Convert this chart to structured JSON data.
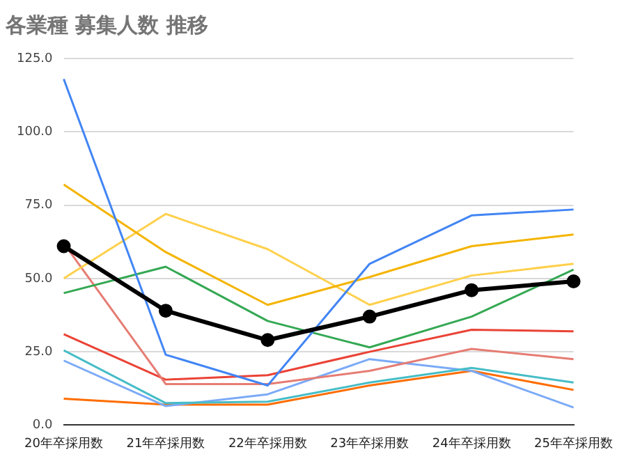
{
  "chart_data": {
    "type": "line",
    "title": "各業種 募集人数 推移",
    "categories": [
      "20年卒採用数",
      "21年卒採用数",
      "22年卒採用数",
      "23年卒採用数",
      "24年卒採用数",
      "25年卒採用数"
    ],
    "series": [
      {
        "color": "#4285f4",
        "values": [
          118,
          24,
          13.5,
          55,
          71.5,
          73.5
        ]
      },
      {
        "color": "#f4b400",
        "values": [
          82,
          59,
          41,
          50.5,
          61,
          65
        ]
      },
      {
        "color": "#ffd04b",
        "values": [
          50,
          72,
          60,
          41,
          51,
          55
        ]
      },
      {
        "color": "#34a853",
        "values": [
          45,
          54,
          35.5,
          26.5,
          37,
          53
        ]
      },
      {
        "color": "#e67c73",
        "values": [
          62,
          14,
          14,
          18.5,
          26,
          22.5
        ]
      },
      {
        "color": "#ea4335",
        "values": [
          31,
          15.5,
          17,
          25,
          32.5,
          32
        ]
      },
      {
        "color": "#46bdc6",
        "values": [
          25.5,
          7.5,
          8,
          14.5,
          19.5,
          14.5
        ]
      },
      {
        "color": "#7baaf7",
        "values": [
          22,
          6.5,
          10.5,
          22.5,
          18.5,
          6
        ]
      },
      {
        "color": "#ff6d01",
        "values": [
          9,
          7,
          7,
          13.5,
          18.5,
          12
        ]
      },
      {
        "color": "#000000",
        "marker": "circle",
        "values": [
          61,
          39,
          29,
          37,
          46,
          49
        ]
      }
    ],
    "ylim": [
      0,
      125
    ],
    "yticks": [
      {
        "value": 0,
        "label": "0.0"
      },
      {
        "value": 25,
        "label": "25.0"
      },
      {
        "value": 50,
        "label": "50.0"
      },
      {
        "value": 75,
        "label": "75.0"
      },
      {
        "value": 100,
        "label": "100.0"
      },
      {
        "value": 125,
        "label": "125.0"
      }
    ],
    "grid": "y",
    "marker": "none",
    "line_style": "solid"
  }
}
